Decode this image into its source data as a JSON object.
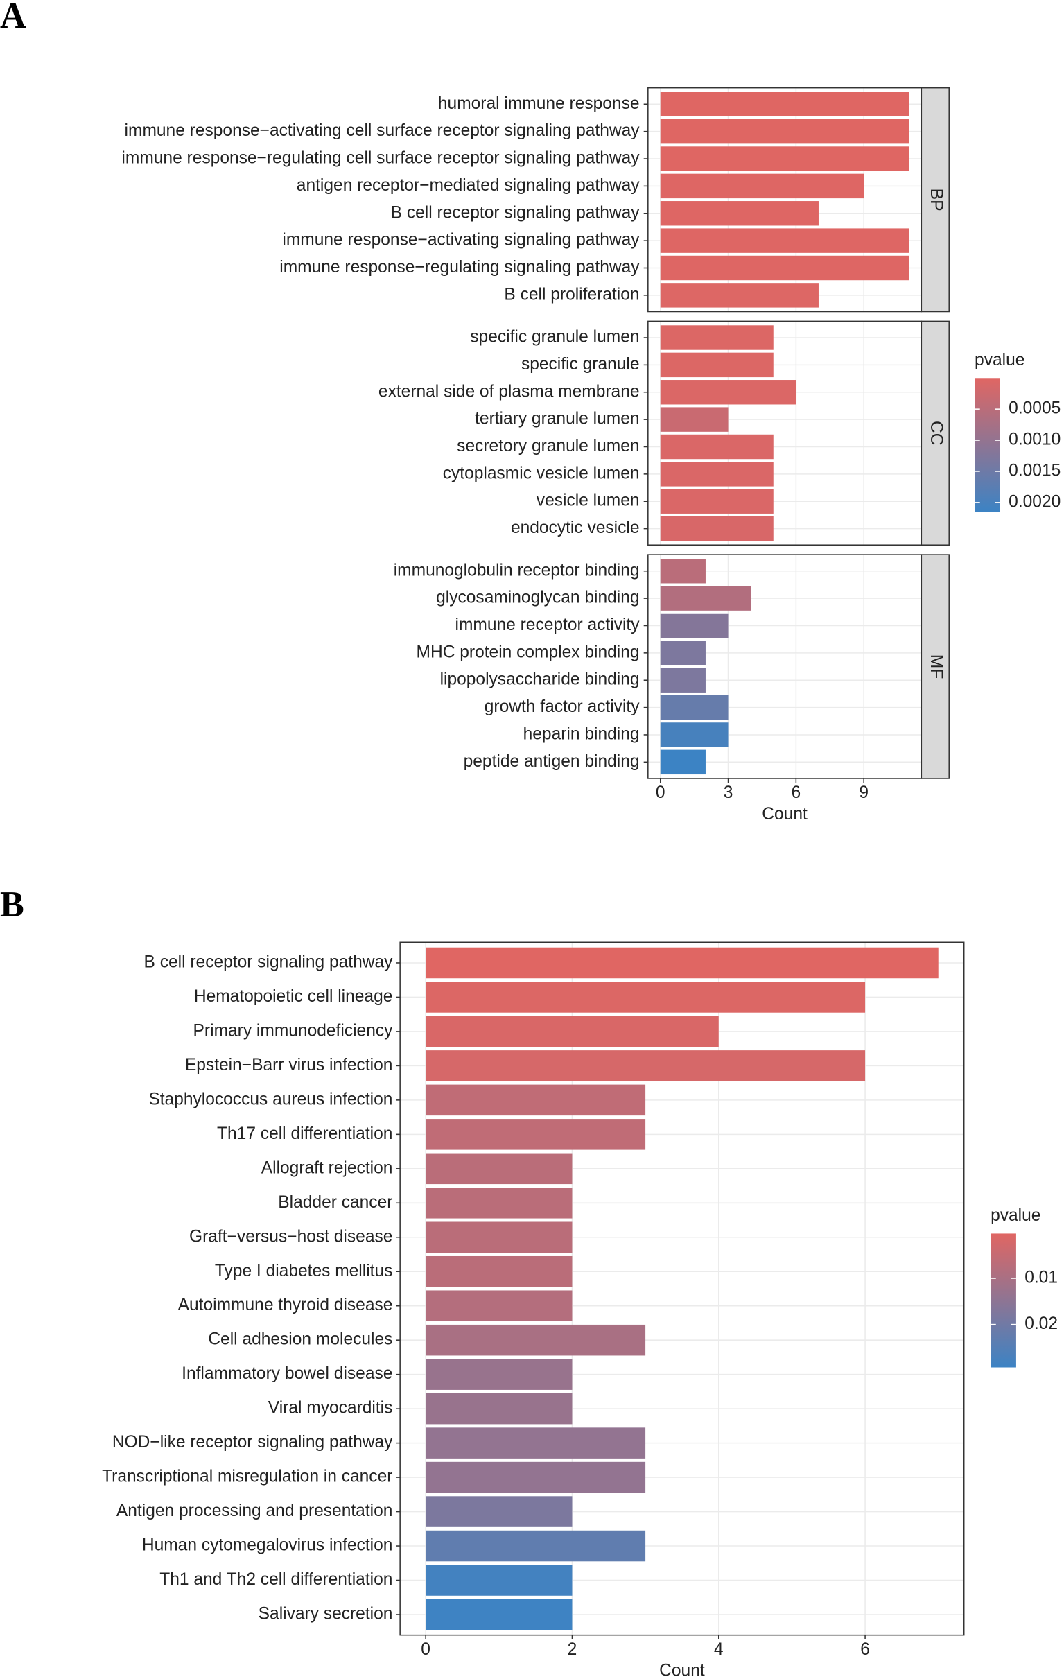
{
  "chart_data": [
    {
      "type": "bar",
      "orientation": "horizontal",
      "panel_label": "A",
      "xlabel": "Count",
      "xlim": [
        -0.55,
        11.55
      ],
      "xticks": [
        0,
        3,
        6,
        9
      ],
      "grid": true,
      "facets": [
        {
          "label": "BP",
          "categories": [
            "humoral immune response",
            "immune response−activating cell surface receptor signaling pathway",
            "immune response−regulating cell surface receptor signaling pathway",
            "antigen receptor−mediated signaling pathway",
            "B cell receptor signaling pathway",
            "immune response−activating signaling pathway",
            "immune response−regulating signaling pathway",
            "B cell proliferation"
          ],
          "values": [
            11,
            11,
            11,
            9,
            7,
            11,
            11,
            7
          ],
          "pvalues": [
            1e-05,
            1e-05,
            1e-05,
            2e-05,
            3e-05,
            2e-05,
            2e-05,
            4e-05
          ]
        },
        {
          "label": "CC",
          "categories": [
            "specific granule lumen",
            "specific granule",
            "external side of plasma membrane",
            "tertiary granule lumen",
            "secretory granule lumen",
            "cytoplasmic vesicle lumen",
            "vesicle lumen",
            "endocytic vesicle"
          ],
          "values": [
            5,
            5,
            6,
            3,
            5,
            5,
            5,
            5
          ],
          "pvalues": [
            5e-05,
            5e-05,
            6e-05,
            0.0003,
            8e-05,
            8e-05,
            8e-05,
            0.0001
          ]
        },
        {
          "label": "MF",
          "categories": [
            "immunoglobulin receptor binding",
            "glycosaminoglycan binding",
            "immune receptor activity",
            "MHC protein complex binding",
            "lipopolysaccharide binding",
            "growth factor activity",
            "heparin binding",
            "peptide antigen binding"
          ],
          "values": [
            2,
            4,
            3,
            2,
            2,
            3,
            3,
            2
          ],
          "pvalues": [
            0.0005,
            0.0006,
            0.0012,
            0.0013,
            0.0013,
            0.0016,
            0.002,
            0.00215
          ]
        }
      ],
      "legend": {
        "title": "pvalue",
        "clim": [
          0,
          0.00215
        ],
        "colors": [
          "#e06663",
          "#3c83c4"
        ],
        "ticks": [
          0.0005,
          {
            "value": 0.001,
            "label": "0.0010"
          },
          0.0015,
          {
            "value": 0.002,
            "label": "0.0020"
          }
        ]
      }
    },
    {
      "type": "bar",
      "orientation": "horizontal",
      "panel_label": "B",
      "xlabel": "Count",
      "xlim": [
        -0.35,
        7.35
      ],
      "xticks": [
        0,
        2,
        4,
        6
      ],
      "grid": true,
      "categories": [
        "B cell receptor signaling pathway",
        "Hematopoietic cell lineage",
        "Primary immunodeficiency",
        "Epstein−Barr virus infection",
        "Staphylococcus aureus infection",
        "Th17 cell differentiation",
        "Allograft rejection",
        "Bladder cancer",
        "Graft−versus−host disease",
        "Type I diabetes mellitus",
        "Autoimmune thyroid disease",
        "Cell adhesion molecules",
        "Inflammatory bowel disease",
        "Viral myocarditis",
        "NOD−like receptor signaling pathway",
        "Transcriptional misregulation in cancer",
        "Antigen processing and presentation",
        "Human cytomegalovirus infection",
        "Th1 and Th2 cell differentiation",
        "Salivary secretion"
      ],
      "values": [
        7,
        6,
        4,
        6,
        3,
        3,
        2,
        2,
        2,
        2,
        2,
        3,
        2,
        2,
        3,
        3,
        2,
        3,
        2,
        2
      ],
      "pvalues": [
        0.0003,
        0.001,
        0.0015,
        0.002,
        0.006,
        0.006,
        0.007,
        0.007,
        0.007,
        0.007,
        0.008,
        0.01,
        0.013,
        0.013,
        0.014,
        0.014,
        0.018,
        0.023,
        0.028,
        0.029
      ],
      "legend": {
        "title": "pvalue",
        "clim": [
          0.0003,
          0.0293
        ],
        "colors": [
          "#e06663",
          "#3c83c4"
        ],
        "ticks": [
          0.01,
          0.02
        ]
      }
    }
  ]
}
